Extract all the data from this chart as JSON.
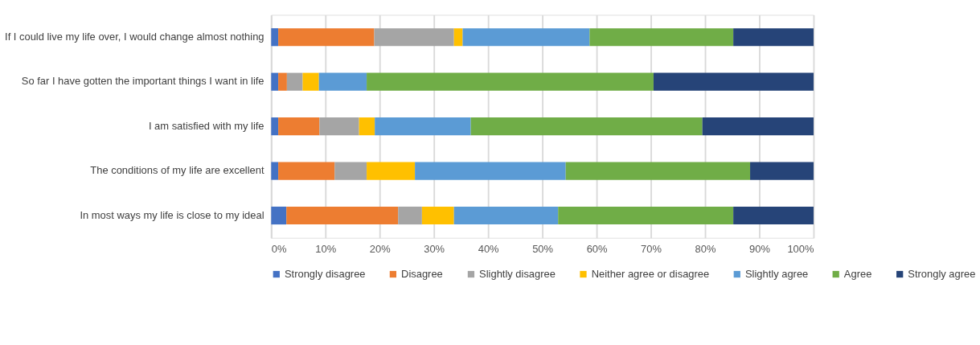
{
  "chart_data": {
    "type": "bar",
    "orientation": "horizontal",
    "stacked": true,
    "categories": [
      "If I could live my life over, I would change almost nothing",
      "So far I have gotten the important things I want in life",
      "I am satisfied with my life",
      "The conditions of my life are excellent",
      "In most ways my life is close to my ideal"
    ],
    "series": [
      {
        "name": "Strongly disagree",
        "color": "#4472c4",
        "values": [
          1.3,
          1.3,
          1.3,
          1.3,
          2.8
        ]
      },
      {
        "name": "Disagree",
        "color": "#ed7d31",
        "values": [
          17.7,
          1.6,
          7.6,
          10.4,
          20.6
        ]
      },
      {
        "name": "Slightly disagree",
        "color": "#a5a5a5",
        "values": [
          14.7,
          2.9,
          7.3,
          5.9,
          4.4
        ]
      },
      {
        "name": "Neither agree or disagree",
        "color": "#ffc000",
        "values": [
          1.6,
          3.0,
          2.9,
          8.9,
          5.9
        ]
      },
      {
        "name": "Slightly agree",
        "color": "#5b9bd5",
        "values": [
          23.4,
          8.8,
          17.7,
          27.8,
          19.2
        ]
      },
      {
        "name": "Agree",
        "color": "#70ad47",
        "values": [
          26.5,
          52.9,
          42.7,
          34.0,
          32.3
        ]
      },
      {
        "name": "Strongly agree",
        "color": "#264478",
        "values": [
          14.8,
          29.5,
          20.5,
          11.7,
          14.8
        ]
      }
    ],
    "xlim": [
      0,
      100
    ],
    "xticks": [
      {
        "value": 0,
        "label": "0%"
      },
      {
        "value": 10,
        "label": "10%"
      },
      {
        "value": 20,
        "label": "20%"
      },
      {
        "value": 30,
        "label": "30%"
      },
      {
        "value": 40,
        "label": "40%"
      },
      {
        "value": 50,
        "label": "50%"
      },
      {
        "value": 60,
        "label": "60%"
      },
      {
        "value": 70,
        "label": "70%"
      },
      {
        "value": 80,
        "label": "80%"
      },
      {
        "value": 90,
        "label": "90%"
      },
      {
        "value": 100,
        "label": "100%"
      }
    ],
    "grid": "x",
    "legend": "bottom"
  }
}
